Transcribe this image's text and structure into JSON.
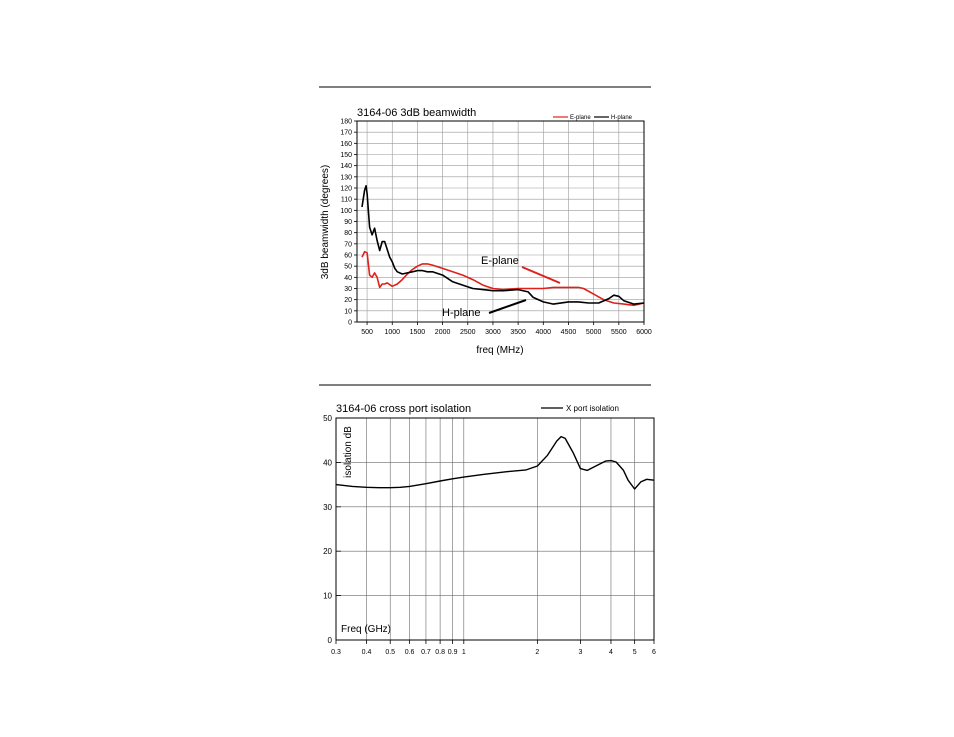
{
  "chart_data": [
    {
      "type": "line",
      "title": "3164-06 3dB beamwidth",
      "xlabel": "freq (MHz)",
      "ylabel": "3dB beamwidth (degrees)",
      "xlim": [
        300,
        6000
      ],
      "ylim": [
        0,
        180
      ],
      "xticks": [
        500,
        1000,
        1500,
        2000,
        2500,
        3000,
        3500,
        4000,
        4500,
        5000,
        5500,
        6000
      ],
      "yticks": [
        0,
        10,
        20,
        30,
        40,
        50,
        60,
        70,
        80,
        90,
        100,
        110,
        120,
        130,
        140,
        150,
        160,
        170,
        180
      ],
      "grid": true,
      "legend_position": "top-right",
      "series": [
        {
          "name": "E-plane",
          "color": "#e0201b",
          "x": [
            400,
            450,
            500,
            550,
            600,
            650,
            700,
            750,
            800,
            850,
            900,
            1000,
            1100,
            1200,
            1300,
            1400,
            1500,
            1600,
            1700,
            1800,
            2000,
            2200,
            2400,
            2600,
            2800,
            3000,
            3200,
            3500,
            3800,
            4000,
            4200,
            4500,
            4700,
            4800,
            5000,
            5200,
            5400,
            5600,
            5800,
            6000
          ],
          "y": [
            58,
            63,
            62,
            42,
            40,
            44,
            40,
            31,
            34,
            34,
            35,
            32,
            34,
            38,
            43,
            47,
            50,
            52,
            52,
            51,
            48,
            45,
            42,
            38,
            33,
            30,
            29,
            30,
            30,
            30,
            31,
            31,
            31,
            30,
            25,
            20,
            17,
            16,
            15,
            17
          ]
        },
        {
          "name": "H-plane",
          "color": "#000000",
          "x": [
            400,
            450,
            480,
            500,
            550,
            600,
            650,
            700,
            750,
            800,
            850,
            900,
            950,
            1000,
            1050,
            1100,
            1200,
            1300,
            1400,
            1500,
            1600,
            1700,
            1800,
            2000,
            2200,
            2400,
            2600,
            2800,
            3000,
            3200,
            3500,
            3700,
            3800,
            4000,
            4200,
            4500,
            4700,
            4900,
            5100,
            5300,
            5400,
            5500,
            5600,
            5800,
            6000
          ],
          "y": [
            103,
            118,
            122,
            115,
            85,
            78,
            84,
            73,
            64,
            72,
            72,
            65,
            58,
            54,
            48,
            45,
            43,
            44,
            45,
            46,
            46,
            45,
            45,
            42,
            36,
            33,
            30,
            29,
            28,
            28,
            29,
            27,
            22,
            18,
            16,
            18,
            18,
            17,
            17,
            21,
            24,
            23,
            19,
            16,
            17
          ]
        }
      ],
      "annotations": [
        "E-plane",
        "H-plane"
      ]
    },
    {
      "type": "line",
      "title": "3164-06 cross port isolation",
      "xlabel": "Freq (GHz)",
      "ylabel": "isolation dB",
      "x_scale": "log",
      "xlim": [
        0.3,
        6
      ],
      "ylim": [
        0,
        50
      ],
      "xticks": [
        0.3,
        0.4,
        0.5,
        0.6,
        0.7,
        0.8,
        0.9,
        1,
        2,
        3,
        4,
        5,
        6
      ],
      "xtick_labels": [
        "0.3",
        "0.4",
        "0.5",
        "0.6",
        "0.7",
        "0.8",
        "0.9",
        "1",
        "2",
        "3",
        "4",
        "5",
        "6"
      ],
      "yticks": [
        0,
        10,
        20,
        30,
        40,
        50
      ],
      "grid": true,
      "legend_position": "top-right",
      "series": [
        {
          "name": "X port isolation",
          "color": "#000000",
          "x": [
            0.3,
            0.35,
            0.4,
            0.45,
            0.5,
            0.55,
            0.6,
            0.7,
            0.8,
            0.9,
            1.0,
            1.2,
            1.5,
            1.8,
            2.0,
            2.2,
            2.4,
            2.5,
            2.6,
            2.8,
            3.0,
            3.2,
            3.5,
            3.8,
            4.0,
            4.2,
            4.5,
            4.7,
            5.0,
            5.3,
            5.6,
            6.0
          ],
          "y": [
            35,
            34.6,
            34.4,
            34.3,
            34.3,
            34.4,
            34.6,
            35.2,
            35.8,
            36.3,
            36.7,
            37.3,
            37.9,
            38.3,
            39.2,
            41.6,
            44.8,
            45.8,
            45.4,
            42.2,
            38.6,
            38.2,
            39.3,
            40.3,
            40.4,
            40.1,
            38.2,
            36,
            34,
            35.6,
            36.2,
            36
          ]
        }
      ]
    }
  ]
}
